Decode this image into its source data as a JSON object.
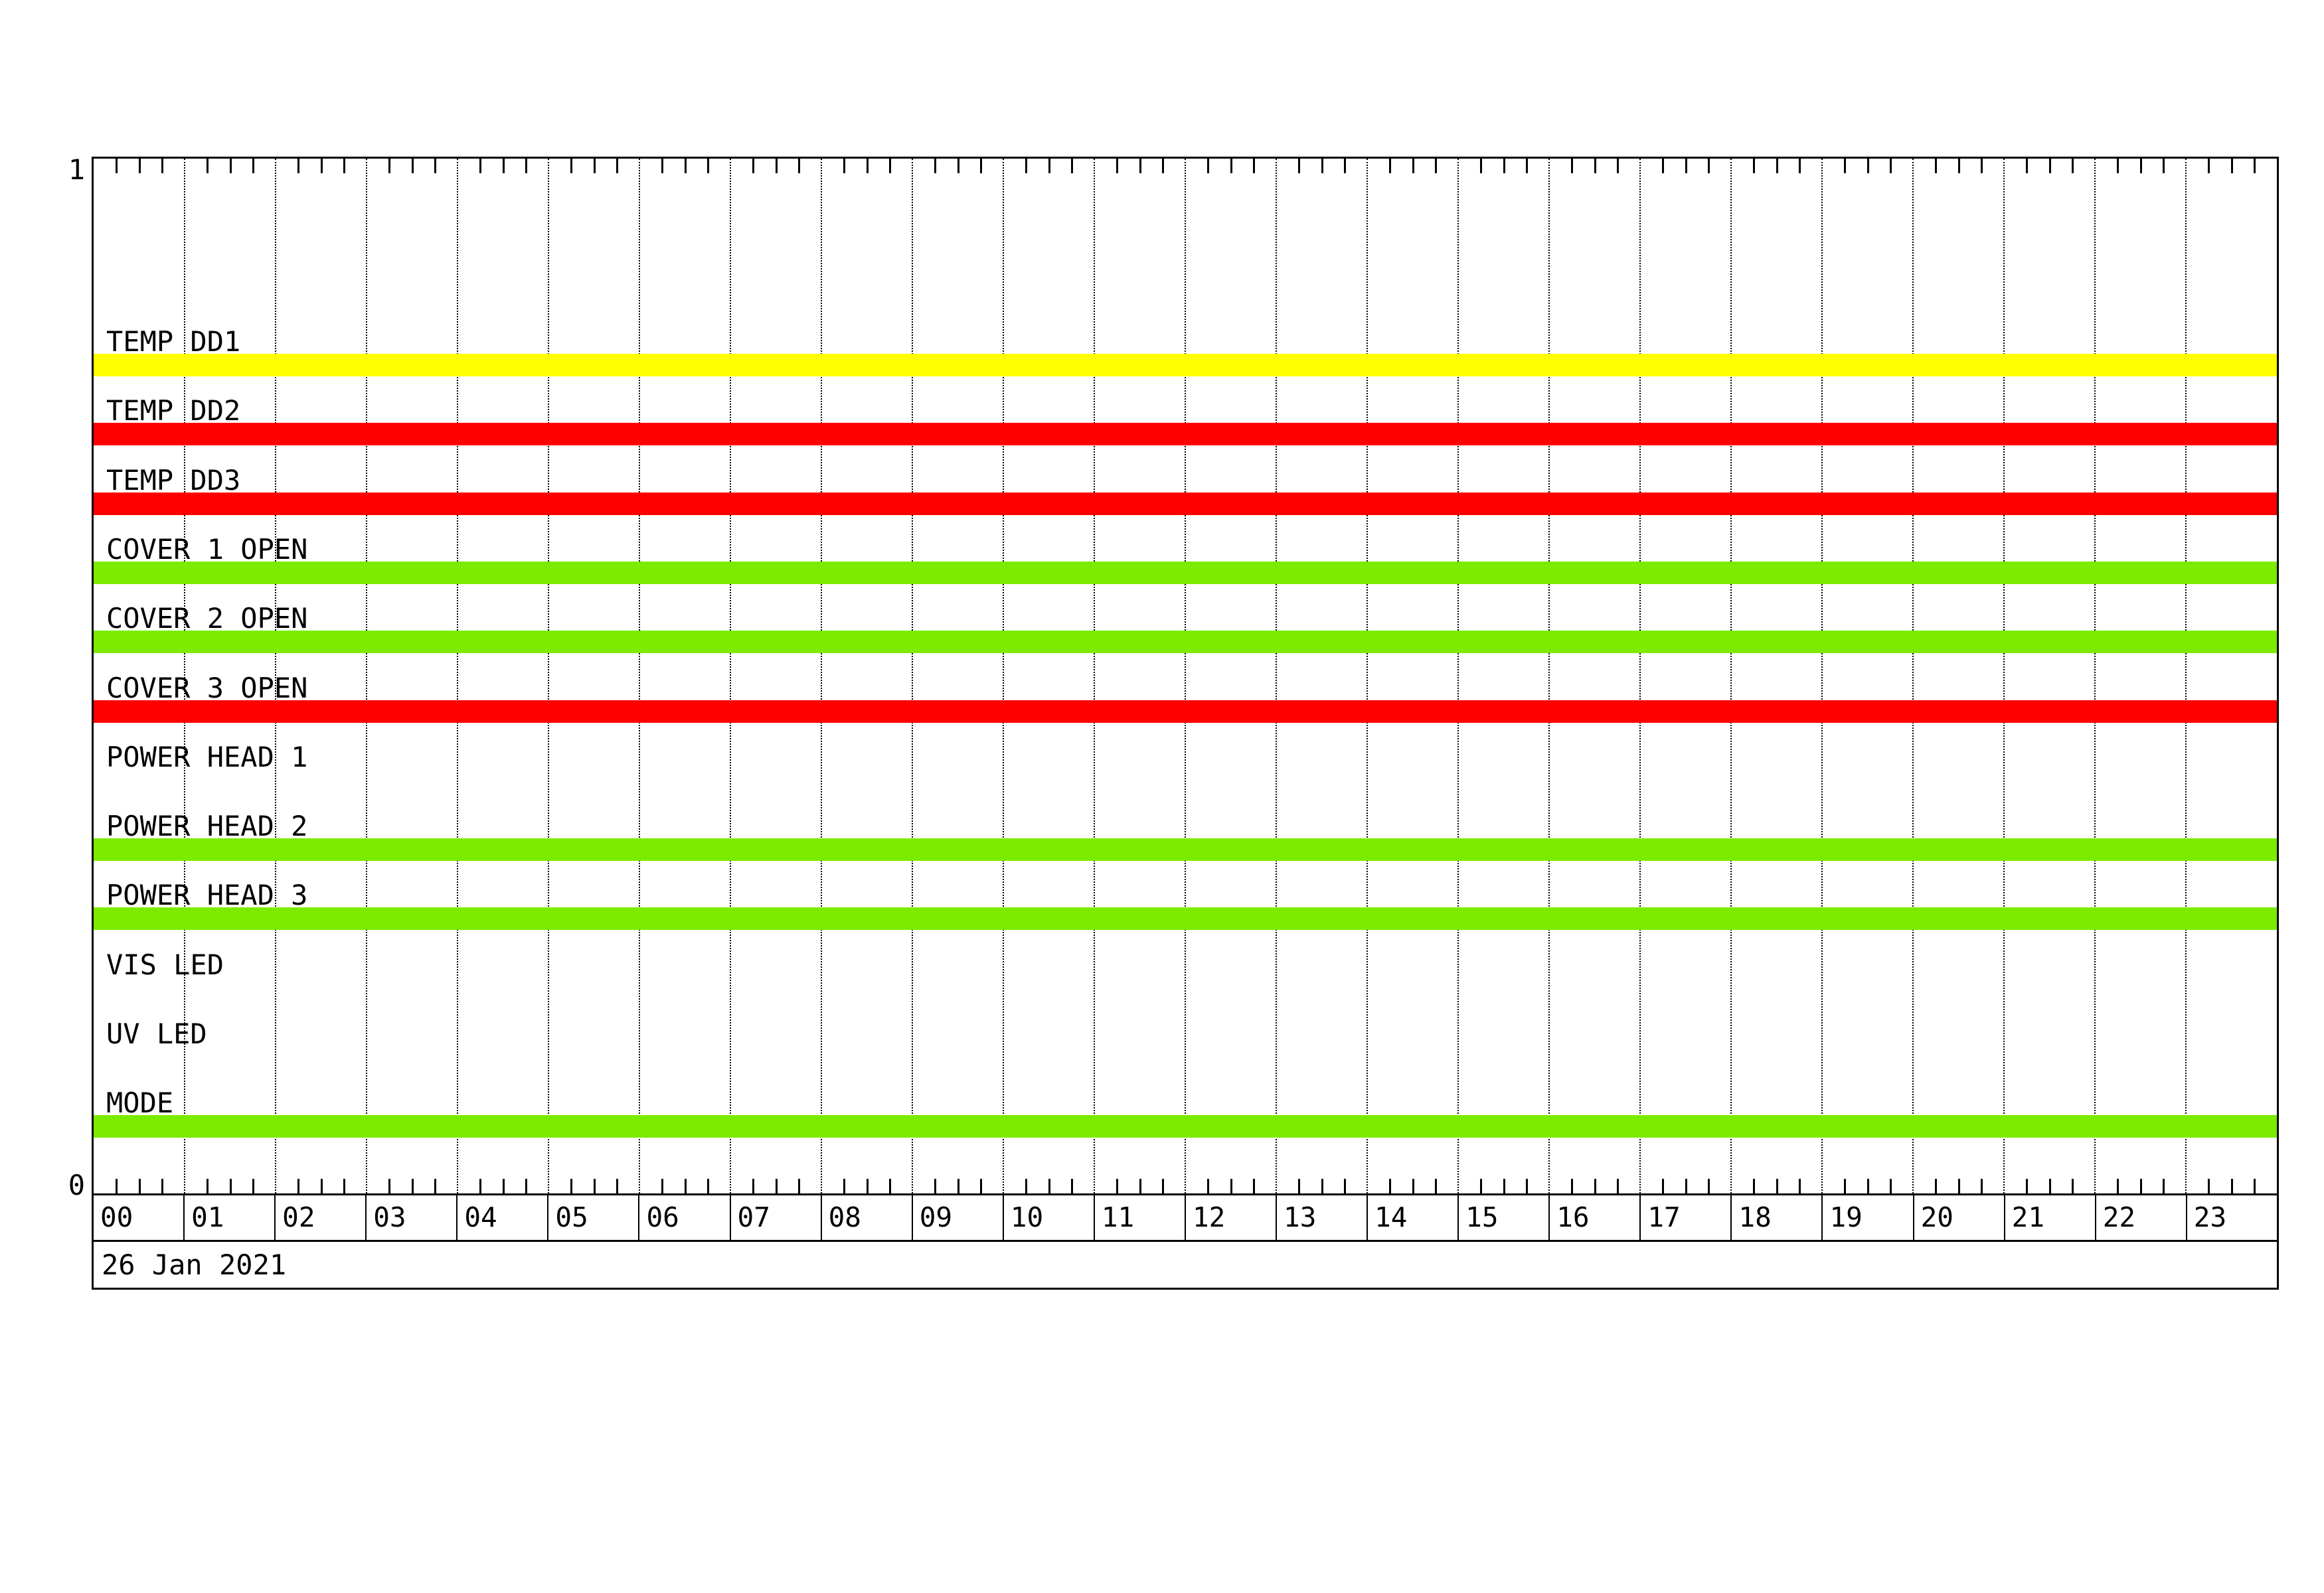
{
  "chart_data": {
    "type": "bar",
    "subtype": "binary-status-timeline",
    "title": "",
    "y_axis": {
      "top_label": "1",
      "bottom_label": "0",
      "range": [
        0,
        1
      ]
    },
    "x_axis": {
      "date_label": "26 Jan 2021",
      "range_hours": [
        0,
        24
      ],
      "hour_labels": [
        "00",
        "01",
        "02",
        "03",
        "04",
        "05",
        "06",
        "07",
        "08",
        "09",
        "10",
        "11",
        "12",
        "13",
        "14",
        "15",
        "16",
        "17",
        "18",
        "19",
        "20",
        "21",
        "22",
        "23"
      ],
      "minor_tick_minutes": 15,
      "gridlines": "hourly-dotted",
      "legend_position": "none",
      "grid_on": true
    },
    "palette": {
      "yellow": "#ffff00",
      "red": "#ff0000",
      "green": "#7ceb00"
    },
    "channels": [
      {
        "label": "TEMP DD1",
        "bar_color": "yellow",
        "intervals_hours": [
          [
            0,
            24
          ]
        ]
      },
      {
        "label": "TEMP DD2",
        "bar_color": "red",
        "intervals_hours": [
          [
            0,
            24
          ]
        ]
      },
      {
        "label": "TEMP DD3",
        "bar_color": "red",
        "intervals_hours": [
          [
            0,
            24
          ]
        ]
      },
      {
        "label": "COVER 1 OPEN",
        "bar_color": "green",
        "intervals_hours": [
          [
            0,
            24
          ]
        ]
      },
      {
        "label": "COVER 2 OPEN",
        "bar_color": "green",
        "intervals_hours": [
          [
            0,
            24
          ]
        ]
      },
      {
        "label": "COVER 3 OPEN",
        "bar_color": "red",
        "intervals_hours": [
          [
            0,
            24
          ]
        ]
      },
      {
        "label": "POWER HEAD 1",
        "bar_color": null,
        "intervals_hours": []
      },
      {
        "label": "POWER HEAD 2",
        "bar_color": "green",
        "intervals_hours": [
          [
            0,
            24
          ]
        ]
      },
      {
        "label": "POWER HEAD 3",
        "bar_color": "green",
        "intervals_hours": [
          [
            0,
            24
          ]
        ]
      },
      {
        "label": "VIS LED",
        "bar_color": null,
        "intervals_hours": []
      },
      {
        "label": "UV LED",
        "bar_color": null,
        "intervals_hours": []
      },
      {
        "label": "MODE",
        "bar_color": "green",
        "intervals_hours": [
          [
            0,
            24
          ]
        ]
      }
    ]
  }
}
